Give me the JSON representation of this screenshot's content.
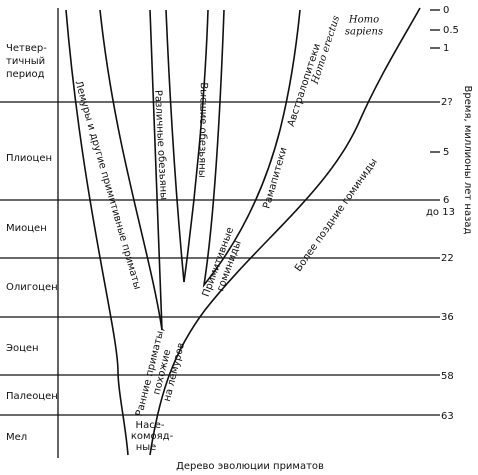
{
  "periods": [
    [
      "Четвер-",
      "тичный",
      "период"
    ],
    [
      "Плиоцен"
    ],
    [
      "Миоцен"
    ],
    [
      "Олигоцен"
    ],
    [
      "Эоцен"
    ],
    [
      "Палеоцен"
    ],
    [
      "Мел"
    ]
  ],
  "time_labels": [
    "0",
    "0.5",
    "1",
    "2?",
    "5",
    "6",
    "до 13",
    "22",
    "36",
    "58",
    "63"
  ],
  "axis_title": "Время, миллионы лет назад",
  "branches": {
    "lemurs": "Лемуры и другие примитивные приматы",
    "monkeys": "Различные обезьяны",
    "apes": "Высшие обезьяны",
    "australopithecus": "Австралопитеки",
    "homo_erectus": "Homo erectus",
    "homo_sapiens": [
      "Homo",
      "sapiens"
    ],
    "ramapithecus": "Рамапитеки",
    "later_hominids": "Более поздние гоминиды",
    "primitive_hominids": [
      "Примитивные",
      "гоминиды"
    ],
    "early_primates": [
      "Ранние приматы,",
      "похожие",
      "на лемуров"
    ],
    "insectivores": [
      "Насе-",
      "комояд-",
      "ные"
    ]
  },
  "caption": "Дерево эволюции приматов"
}
